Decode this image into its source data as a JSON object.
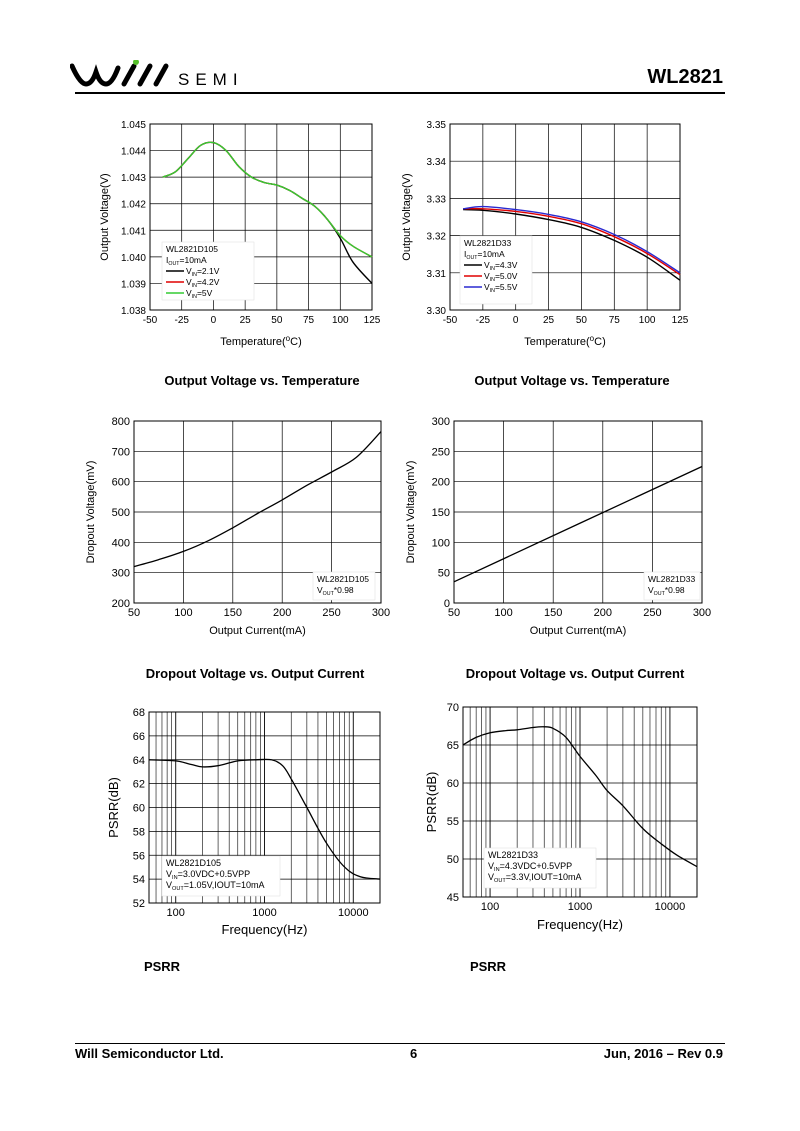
{
  "header": {
    "brand": "SEMI",
    "doc_id": "WL2821"
  },
  "footer": {
    "company": "Will Semiconductor Ltd.",
    "page": "6",
    "revision": "Jun, 2016 – Rev 0.9"
  },
  "captions": {
    "c1": "Output Voltage vs. Temperature",
    "c2": "Output Voltage vs. Temperature",
    "c3": "Dropout Voltage vs. Output Current",
    "c4": "Dropout Voltage vs. Output Current",
    "c5": "PSRR",
    "c6": "PSRR"
  },
  "chart_data": [
    {
      "id": "vout_temp_d105",
      "type": "line",
      "xlabel": "Temperature(°C)",
      "ylabel": "Output Voltage(V)",
      "xlim": [
        -50,
        125
      ],
      "ylim": [
        1.038,
        1.045
      ],
      "xticks": [
        -50,
        -25,
        0,
        25,
        50,
        75,
        100,
        125
      ],
      "yticks": [
        1.038,
        1.039,
        1.04,
        1.041,
        1.042,
        1.043,
        1.044,
        1.045
      ],
      "ydecimals": 3,
      "legend_title": [
        "WL2821D105",
        "IOUT=10mA"
      ],
      "series": [
        {
          "name": "VIN=2.1V",
          "color": "#000000",
          "x": [
            -40,
            -30,
            -20,
            -10,
            0,
            10,
            20,
            30,
            40,
            50,
            60,
            70,
            80,
            90,
            100,
            110,
            125
          ],
          "y": [
            1.043,
            1.0432,
            1.0437,
            1.0442,
            1.0443,
            1.044,
            1.0434,
            1.043,
            1.0428,
            1.0427,
            1.0425,
            1.0422,
            1.0419,
            1.0414,
            1.0407,
            1.0398,
            1.039
          ]
        },
        {
          "name": "VIN=4.2V",
          "color": "#e00000",
          "x": [
            -40,
            -30,
            -20,
            -10,
            0,
            10,
            20,
            30,
            40,
            50,
            60,
            70,
            80,
            90,
            100,
            110,
            125
          ],
          "y": [
            1.043,
            1.0432,
            1.0437,
            1.0442,
            1.0443,
            1.044,
            1.0434,
            1.043,
            1.0428,
            1.0427,
            1.0425,
            1.0422,
            1.0419,
            1.0414,
            1.0408,
            1.0404,
            1.04
          ]
        },
        {
          "name": "VIN=5V",
          "color": "#33cc33",
          "x": [
            -40,
            -30,
            -20,
            -10,
            0,
            10,
            20,
            30,
            40,
            50,
            60,
            70,
            80,
            90,
            100,
            110,
            125
          ],
          "y": [
            1.043,
            1.0432,
            1.0437,
            1.0442,
            1.0443,
            1.044,
            1.0434,
            1.043,
            1.0428,
            1.0427,
            1.0425,
            1.0422,
            1.0419,
            1.0414,
            1.0408,
            1.0404,
            1.04
          ]
        }
      ]
    },
    {
      "id": "vout_temp_d33",
      "type": "line",
      "xlabel": "Temperature(°C)",
      "ylabel": "Output Voltage(V)",
      "xlim": [
        -50,
        125
      ],
      "ylim": [
        3.3,
        3.35
      ],
      "xticks": [
        -50,
        -25,
        0,
        25,
        50,
        75,
        100,
        125
      ],
      "yticks": [
        3.3,
        3.31,
        3.32,
        3.33,
        3.34,
        3.35
      ],
      "ydecimals": 2,
      "legend_title": [
        "WL2821D33",
        "IOUT=10mA"
      ],
      "series": [
        {
          "name": "VIN=4.3V",
          "color": "#000000",
          "x": [
            -40,
            -25,
            0,
            25,
            50,
            75,
            100,
            125
          ],
          "y": [
            3.327,
            3.3268,
            3.3258,
            3.3243,
            3.3222,
            3.3187,
            3.3142,
            3.308
          ]
        },
        {
          "name": "VIN=5.0V",
          "color": "#e00000",
          "x": [
            -40,
            -25,
            0,
            25,
            50,
            75,
            100,
            125
          ],
          "y": [
            3.3272,
            3.3272,
            3.3265,
            3.3252,
            3.3232,
            3.3197,
            3.3152,
            3.3095
          ]
        },
        {
          "name": "VIN=5.5V",
          "color": "#2a2ad0",
          "x": [
            -40,
            -25,
            0,
            25,
            50,
            75,
            100,
            125
          ],
          "y": [
            3.3272,
            3.3278,
            3.327,
            3.3257,
            3.3237,
            3.3203,
            3.3157,
            3.31
          ]
        }
      ]
    },
    {
      "id": "dropout_d105",
      "type": "line",
      "xlabel": "Output Current(mA)",
      "ylabel": "Dropout Voltage(mV)",
      "xlim": [
        50,
        300
      ],
      "ylim": [
        200,
        800
      ],
      "xticks": [
        50,
        100,
        150,
        200,
        250,
        300
      ],
      "yticks": [
        200,
        300,
        400,
        500,
        600,
        700,
        800
      ],
      "ydecimals": 0,
      "legend_title": [
        "WL2821D105",
        "VOUT*0.98"
      ],
      "series": [
        {
          "name": "D105",
          "color": "#000000",
          "x": [
            50,
            75,
            100,
            125,
            150,
            175,
            200,
            225,
            250,
            275,
            300
          ],
          "y": [
            320,
            343,
            370,
            405,
            448,
            495,
            540,
            588,
            632,
            680,
            765
          ]
        }
      ]
    },
    {
      "id": "dropout_d33",
      "type": "line",
      "xlabel": "Output Current(mA)",
      "ylabel": "Dropout Voltage(mV)",
      "xlim": [
        50,
        300
      ],
      "ylim": [
        0,
        300
      ],
      "xticks": [
        50,
        100,
        150,
        200,
        250,
        300
      ],
      "yticks": [
        0,
        50,
        100,
        150,
        200,
        250,
        300
      ],
      "ydecimals": 0,
      "legend_title": [
        "WL2821D33",
        "VOUT*0.98"
      ],
      "series": [
        {
          "name": "D33",
          "color": "#000000",
          "x": [
            50,
            300
          ],
          "y": [
            35,
            225
          ]
        }
      ]
    },
    {
      "id": "psrr_d105",
      "type": "line",
      "xscale": "log",
      "xlabel": "Frequency(Hz)",
      "ylabel": "PSRR(dB)",
      "xlim": [
        50,
        20000
      ],
      "ylim": [
        52,
        68
      ],
      "xticks": [
        100,
        1000,
        10000
      ],
      "yticks": [
        52,
        54,
        56,
        58,
        60,
        62,
        64,
        66,
        68
      ],
      "ydecimals": 0,
      "legend_title": [
        "WL2821D105",
        "VIN=3.0VDC+0.5VPP",
        "VOUT=1.05V,IOUT=10mA"
      ],
      "series": [
        {
          "name": "D105",
          "color": "#000000",
          "x": [
            50,
            100,
            150,
            200,
            300,
            500,
            800,
            1200,
            1600,
            2000,
            3000,
            5000,
            8000,
            12000,
            20000
          ],
          "y": [
            64.0,
            63.9,
            63.6,
            63.4,
            63.5,
            63.9,
            64.0,
            64.0,
            63.5,
            62.4,
            60.0,
            57.0,
            55.0,
            54.2,
            54.0
          ]
        }
      ]
    },
    {
      "id": "psrr_d33",
      "type": "line",
      "xscale": "log",
      "xlabel": "Frequency(Hz)",
      "ylabel": "PSRR(dB)",
      "xlim": [
        50,
        20000
      ],
      "ylim": [
        45,
        70
      ],
      "xticks": [
        100,
        1000,
        10000
      ],
      "yticks": [
        45,
        50,
        55,
        60,
        65,
        70
      ],
      "ydecimals": 0,
      "legend_title": [
        "WL2821D33",
        "VIN=4.3VDC+0.5VPP",
        "VOUT=3.3V,IOUT=10mA"
      ],
      "series": [
        {
          "name": "D33",
          "color": "#000000",
          "x": [
            50,
            70,
            100,
            150,
            200,
            300,
            400,
            500,
            700,
            1000,
            1500,
            2000,
            3000,
            5000,
            8000,
            12000,
            20000
          ],
          "y": [
            65.0,
            66.0,
            66.6,
            66.9,
            67.0,
            67.3,
            67.4,
            67.2,
            66.0,
            63.5,
            61.0,
            59.0,
            57.0,
            54.0,
            52.0,
            50.5,
            49.0
          ]
        }
      ]
    }
  ]
}
